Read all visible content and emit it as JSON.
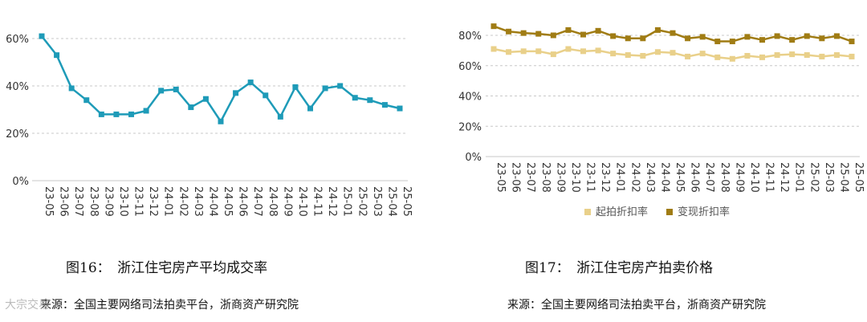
{
  "charts": [
    {
      "type": "line",
      "categories": [
        "23-05",
        "23-06",
        "23-07",
        "23-08",
        "23-09",
        "23-10",
        "23-11",
        "23-12",
        "24-01",
        "24-02",
        "24-03",
        "24-04",
        "24-05",
        "24-06",
        "24-07",
        "24-08",
        "24-09",
        "24-10",
        "24-11",
        "24-12",
        "25-01",
        "25-02",
        "25-03",
        "25-04",
        "25-05"
      ],
      "series": [
        {
          "name": "",
          "color": "#1e9bb8",
          "values": [
            61,
            53,
            39,
            34,
            28,
            28,
            28,
            29.5,
            38,
            38.5,
            31,
            34.5,
            25,
            37,
            41.5,
            36,
            27,
            39.5,
            30.5,
            39,
            40,
            35,
            34,
            32,
            30.5
          ]
        }
      ],
      "ylim": [
        0,
        60
      ],
      "yticks": [
        "0%",
        "20%",
        "40%",
        "60%"
      ],
      "yticks_values": [
        0,
        20,
        40,
        60
      ],
      "grid": "horizontal-dashed",
      "legend": "none"
    },
    {
      "type": "line",
      "categories": [
        "23-05",
        "23-06",
        "23-07",
        "23-08",
        "23-09",
        "23-10",
        "23-11",
        "23-12",
        "24-01",
        "24-02",
        "24-03",
        "24-04",
        "24-05",
        "24-06",
        "24-07",
        "24-08",
        "24-09",
        "24-10",
        "24-11",
        "24-12",
        "25-01",
        "25-02",
        "25-03",
        "25-04",
        "25-05"
      ],
      "series": [
        {
          "name": "起拍折扣率",
          "color": "#e9d08a",
          "values": [
            71,
            69,
            69.5,
            69.5,
            67.5,
            71,
            69.5,
            70,
            68,
            67,
            66.5,
            69,
            68.5,
            66,
            68,
            65.5,
            64.5,
            66.5,
            65.5,
            67,
            67.5,
            67,
            66,
            67,
            66
          ]
        },
        {
          "name": "变现折扣率",
          "color": "#a07c14",
          "values": [
            86,
            82.5,
            81.5,
            81,
            80,
            83.5,
            80.5,
            83,
            79.5,
            78,
            78,
            83.5,
            81.5,
            78,
            79,
            76,
            76,
            79,
            77,
            79.5,
            77,
            79.5,
            78,
            79.5,
            76
          ]
        }
      ],
      "ylim": [
        0,
        80
      ],
      "yticks": [
        "0%",
        "20%",
        "40%",
        "60%",
        "80%"
      ],
      "yticks_values": [
        0,
        20,
        40,
        60,
        80
      ],
      "grid": "horizontal-dashed",
      "legend": "bottom"
    }
  ],
  "captions": {
    "fig16": "图16：　浙江住宅房产平均成交率",
    "fig17": "图17：　浙江住宅房产拍卖价格",
    "source_left": "来源：全国主要网络司法拍卖平台，浙商资产研究院",
    "source_right": "来源：全国主要网络司法拍卖平台，浙商资产研究院"
  },
  "watermark": "大宗交易",
  "colors": {
    "grid": "#c8c8c8",
    "axis": "#999999"
  }
}
